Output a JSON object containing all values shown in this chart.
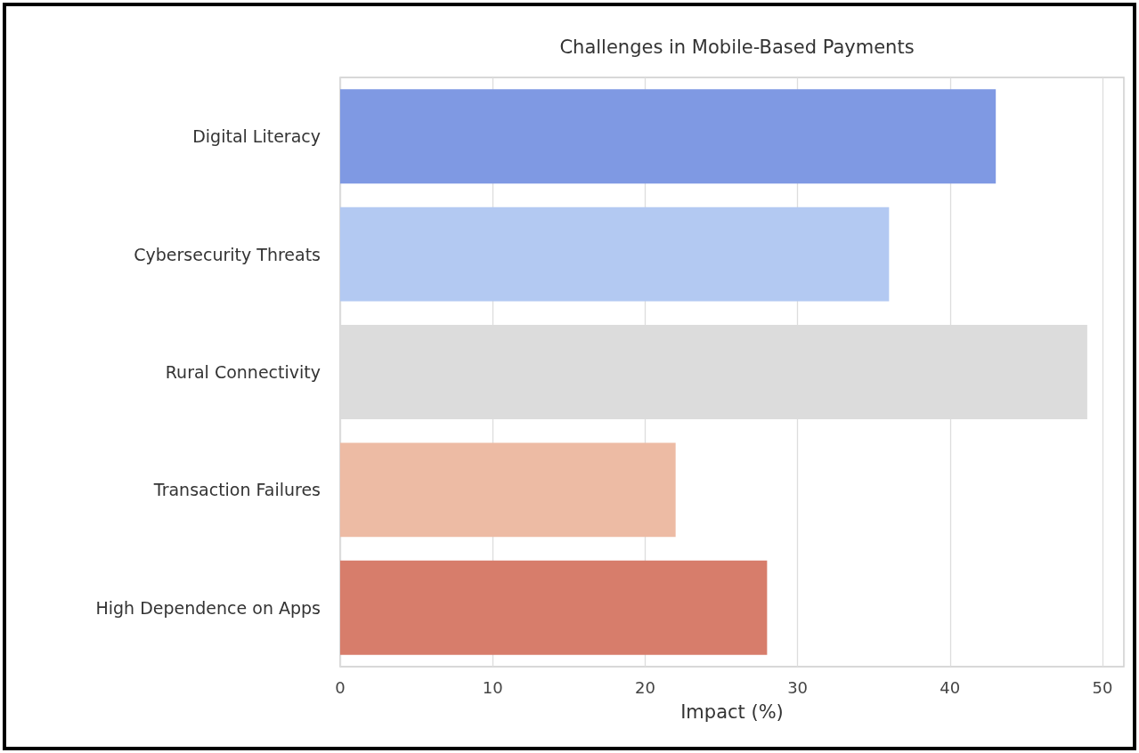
{
  "chart_data": {
    "type": "bar",
    "orientation": "horizontal",
    "title": "Challenges in Mobile-Based Payments",
    "xlabel": "Impact (%)",
    "categories": [
      "Digital Literacy",
      "Cybersecurity Threats",
      "Rural Connectivity",
      "Transaction Failures",
      "High Dependence on Apps"
    ],
    "values": [
      43,
      36,
      49,
      22,
      28
    ],
    "colors": [
      "#7f99e3",
      "#b3c9f2",
      "#dcdcdc",
      "#edbba4",
      "#d77d6b"
    ],
    "xlim": [
      0,
      51.4
    ],
    "xticks": [
      0,
      10,
      20,
      30,
      40,
      50
    ],
    "grid": "x"
  }
}
